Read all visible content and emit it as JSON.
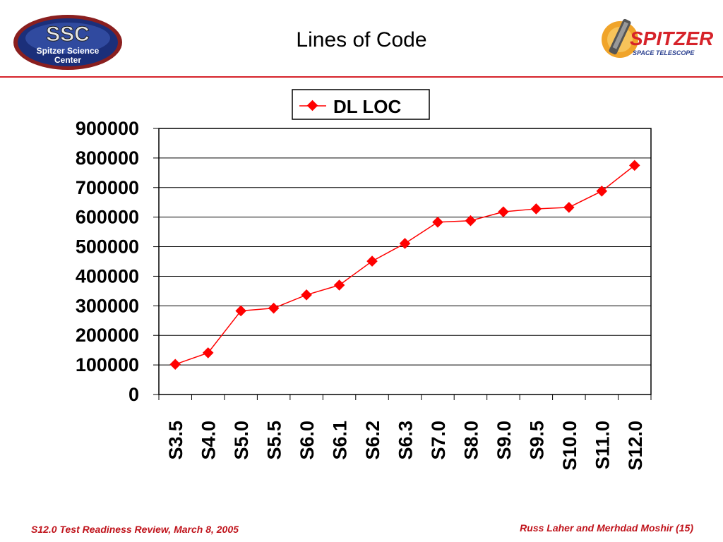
{
  "header": {
    "title": "Lines of Code",
    "ssc_logo_text": [
      "SSC",
      "Spitzer Science",
      "Center"
    ],
    "spitzer_logo_text": [
      "SPITZER",
      "SPACE TELESCOPE"
    ]
  },
  "footer": {
    "left": "S12.0 Test Readiness Review, March 8, 2005",
    "right": "Russ Laher and Merhdad Moshir  (15)"
  },
  "colors": {
    "accent": "#d6232a",
    "series": "#ff0000"
  },
  "chart_data": {
    "type": "line",
    "title": "",
    "xlabel": "",
    "ylabel": "",
    "categories": [
      "S3.5",
      "S4.0",
      "S5.0",
      "S5.5",
      "S6.0",
      "S6.1",
      "S6.2",
      "S6.3",
      "S7.0",
      "S8.0",
      "S9.0",
      "S9.5",
      "S10.0",
      "S11.0",
      "S12.0"
    ],
    "series": [
      {
        "name": "DL LOC",
        "values": [
          102000,
          141000,
          283000,
          292000,
          337000,
          370000,
          451000,
          511000,
          583000,
          588000,
          618000,
          628000,
          633000,
          688000,
          775000
        ]
      }
    ],
    "ylim": [
      0,
      900000
    ],
    "yticks": [
      "0",
      "100000",
      "200000",
      "300000",
      "400000",
      "500000",
      "600000",
      "700000",
      "800000",
      "900000"
    ],
    "grid": true,
    "legend_position": "top"
  }
}
